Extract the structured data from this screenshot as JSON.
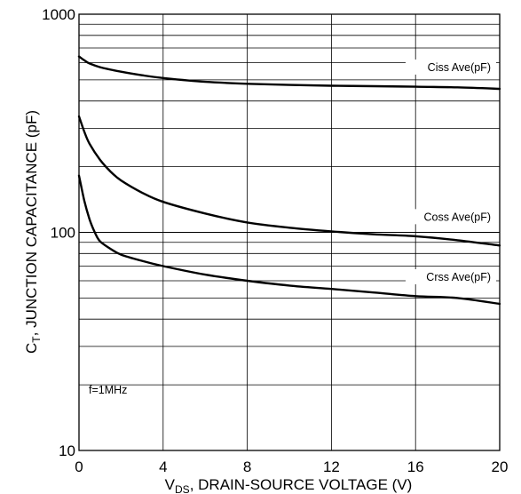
{
  "chart_data": {
    "type": "line",
    "title": "",
    "xlabel_main": "V",
    "xlabel_sub": "DS",
    "xlabel_rest": ", DRAIN-SOURCE VOLTAGE (V)",
    "ylabel_main": "C",
    "ylabel_sub": "T",
    "ylabel_rest": ", JUNCTION CAPACITANCE (pF)",
    "xlim": [
      0,
      20
    ],
    "ylim": [
      10,
      1000
    ],
    "yscale": "log",
    "grid": true,
    "x_ticks": [
      0,
      4,
      8,
      12,
      16,
      20
    ],
    "x_tick_labels": [
      "0",
      "4",
      "8",
      "12",
      "16",
      "20"
    ],
    "y_ticks": [
      10,
      100,
      1000
    ],
    "y_tick_labels": [
      "10",
      "100",
      "1000"
    ],
    "annotation": "f=1MHz",
    "series": [
      {
        "name": "Ciss Ave(pF)",
        "x": [
          0,
          0.25,
          0.5,
          1,
          2,
          3,
          4,
          6,
          8,
          10,
          12,
          14,
          16,
          18,
          20
        ],
        "y": [
          640,
          615,
          595,
          572,
          545,
          525,
          510,
          490,
          480,
          474,
          470,
          468,
          465,
          462,
          455
        ]
      },
      {
        "name": "Coss Ave(pF)",
        "x": [
          0,
          0.25,
          0.5,
          1,
          1.5,
          2,
          3,
          4,
          6,
          8,
          10,
          12,
          14,
          16,
          18,
          20
        ],
        "y": [
          340,
          290,
          255,
          215,
          190,
          173,
          152,
          138,
          122,
          111,
          105,
          101,
          98,
          96,
          92,
          87
        ]
      },
      {
        "name": "Crss Ave(pF)",
        "x": [
          0,
          0.25,
          0.5,
          0.75,
          1,
          1.5,
          2,
          3,
          4,
          6,
          8,
          10,
          12,
          14,
          16,
          18,
          20
        ],
        "y": [
          182,
          140,
          115,
          100,
          91,
          84,
          79,
          74,
          70,
          64,
          60,
          57,
          55,
          53,
          51,
          50,
          47
        ]
      }
    ]
  }
}
